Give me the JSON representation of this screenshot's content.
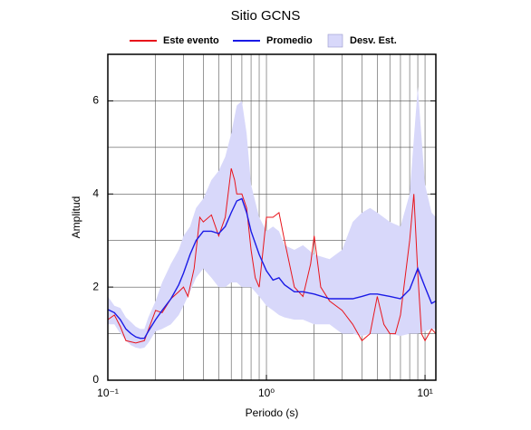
{
  "chart_data": {
    "type": "line",
    "title": "Sitio GCNS",
    "x_label": "Periodo (s)",
    "y_label": "Amplitud",
    "xlog": true,
    "xlim": [
      0.1,
      11.7
    ],
    "ylim": [
      0,
      7
    ],
    "xticks": [
      {
        "value": 0.1,
        "label": "10⁻¹"
      },
      {
        "value": 1,
        "label": "10⁰"
      },
      {
        "value": 10,
        "label": "10¹"
      }
    ],
    "x_minor_ticks": [
      0.2,
      0.3,
      0.4,
      0.5,
      0.6,
      0.7,
      0.8,
      0.9,
      2,
      3,
      4,
      5,
      6,
      7,
      8,
      9
    ],
    "yticks": [
      0,
      2,
      4,
      6
    ],
    "y_minor_ticks": [
      1,
      3,
      5,
      7
    ],
    "grid": true,
    "legend": "top",
    "series": [
      {
        "name": "Este evento",
        "color": "#e8141b",
        "kind": "line",
        "x": [
          0.1,
          0.11,
          0.12,
          0.13,
          0.15,
          0.17,
          0.2,
          0.22,
          0.25,
          0.28,
          0.3,
          0.32,
          0.35,
          0.38,
          0.4,
          0.45,
          0.5,
          0.55,
          0.6,
          0.63,
          0.65,
          0.7,
          0.75,
          0.8,
          0.85,
          0.9,
          1.0,
          1.1,
          1.2,
          1.3,
          1.5,
          1.7,
          1.9,
          2.0,
          2.2,
          2.5,
          3.0,
          3.5,
          4.0,
          4.5,
          5.0,
          5.5,
          6.0,
          6.5,
          7,
          8,
          8.5,
          9,
          9.5,
          10,
          11,
          11.7
        ],
        "values": [
          1.3,
          1.4,
          1.15,
          0.85,
          0.8,
          0.85,
          1.5,
          1.45,
          1.75,
          1.9,
          2.0,
          1.8,
          2.4,
          3.5,
          3.4,
          3.55,
          3.1,
          3.5,
          4.55,
          4.3,
          4.0,
          4.0,
          3.7,
          2.8,
          2.2,
          2.0,
          3.5,
          3.5,
          3.6,
          3.0,
          2.0,
          1.8,
          2.5,
          3.1,
          2.0,
          1.7,
          1.5,
          1.2,
          0.85,
          1.0,
          1.8,
          1.2,
          1.0,
          1.0,
          1.4,
          3.0,
          4.0,
          2.3,
          1.0,
          0.85,
          1.1,
          1.0
        ]
      },
      {
        "name": "Promedio",
        "color": "#1a1ae6",
        "kind": "line",
        "x": [
          0.1,
          0.11,
          0.12,
          0.13,
          0.14,
          0.15,
          0.16,
          0.17,
          0.18,
          0.2,
          0.22,
          0.25,
          0.28,
          0.3,
          0.33,
          0.36,
          0.4,
          0.45,
          0.5,
          0.55,
          0.6,
          0.65,
          0.7,
          0.75,
          0.8,
          0.9,
          1.0,
          1.1,
          1.2,
          1.3,
          1.5,
          1.7,
          2.0,
          2.5,
          3.0,
          3.5,
          4.0,
          4.5,
          5,
          6,
          7,
          8,
          9,
          10,
          11,
          11.7
        ],
        "values": [
          1.52,
          1.45,
          1.3,
          1.1,
          1.0,
          0.93,
          0.9,
          0.9,
          1.05,
          1.3,
          1.5,
          1.75,
          2.05,
          2.3,
          2.7,
          3.0,
          3.2,
          3.2,
          3.15,
          3.3,
          3.6,
          3.85,
          3.9,
          3.6,
          3.2,
          2.7,
          2.35,
          2.15,
          2.2,
          2.05,
          1.9,
          1.9,
          1.85,
          1.75,
          1.75,
          1.75,
          1.8,
          1.85,
          1.85,
          1.8,
          1.75,
          1.95,
          2.4,
          2.0,
          1.65,
          1.7
        ]
      },
      {
        "name": "Desv. Est.",
        "color": "#d8d8fa",
        "kind": "band",
        "x": [
          0.1,
          0.11,
          0.12,
          0.13,
          0.14,
          0.15,
          0.16,
          0.17,
          0.18,
          0.2,
          0.22,
          0.25,
          0.28,
          0.3,
          0.33,
          0.36,
          0.4,
          0.45,
          0.5,
          0.55,
          0.6,
          0.65,
          0.7,
          0.75,
          0.8,
          0.9,
          1.0,
          1.1,
          1.2,
          1.3,
          1.5,
          1.7,
          2.0,
          2.5,
          3.0,
          3.5,
          4.0,
          4.5,
          5,
          6,
          7,
          8,
          9,
          10,
          11,
          11.7
        ],
        "upper": [
          1.8,
          1.6,
          1.55,
          1.35,
          1.25,
          1.15,
          1.1,
          1.1,
          1.35,
          1.7,
          2.1,
          2.5,
          2.8,
          3.1,
          3.3,
          3.7,
          3.9,
          4.3,
          4.5,
          4.8,
          5.3,
          5.9,
          6.0,
          5.3,
          4.2,
          3.5,
          3.2,
          3.3,
          3.2,
          2.9,
          2.8,
          2.9,
          2.7,
          2.6,
          2.8,
          3.4,
          3.6,
          3.7,
          3.6,
          3.4,
          3.3,
          4.0,
          6.3,
          4.2,
          3.6,
          3.5
        ],
        "lower": [
          1.2,
          1.2,
          1.0,
          0.85,
          0.75,
          0.7,
          0.68,
          0.7,
          0.8,
          1.05,
          1.1,
          1.2,
          1.4,
          1.6,
          1.9,
          2.2,
          2.4,
          2.2,
          2.0,
          2.0,
          2.1,
          2.1,
          2.0,
          2.0,
          2.0,
          1.8,
          1.6,
          1.5,
          1.4,
          1.35,
          1.3,
          1.3,
          1.2,
          1.2,
          1.0,
          1.0,
          0.95,
          1.0,
          1.0,
          1.0,
          0.95,
          1.0,
          1.0,
          1.05,
          1.1,
          1.1
        ]
      }
    ]
  }
}
